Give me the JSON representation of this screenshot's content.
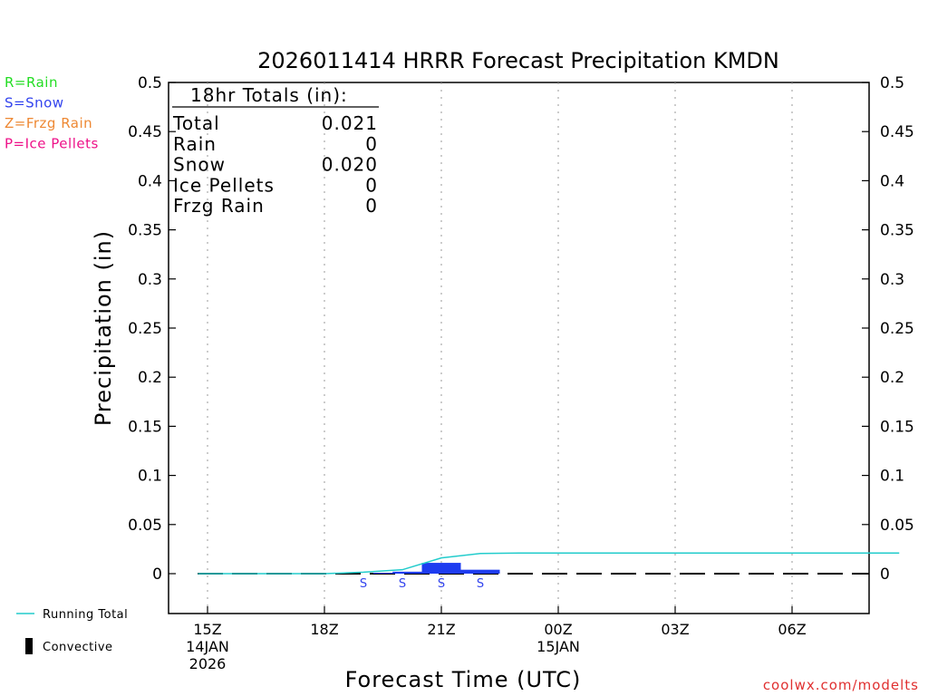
{
  "chart_data": {
    "type": "bar",
    "title": "2026011414 HRRR Forecast Precipitation KMDN",
    "xlabel": "Forecast Time (UTC)",
    "ylabel": "Precipitation (in)",
    "ylim": [
      -0.04,
      0.5
    ],
    "xlim_hours": [
      -0.25,
      17.75
    ],
    "y_ticks": [
      0,
      0.05,
      0.1,
      0.15,
      0.2,
      0.25,
      0.3,
      0.35,
      0.4,
      0.45,
      0.5
    ],
    "y_tick_labels": [
      "0",
      "0.05",
      "0.1",
      "0.15",
      "0.2",
      "0.25",
      "0.3",
      "0.35",
      "0.4",
      "0.45",
      "0.5"
    ],
    "x_ticks": [
      {
        "hour": 0,
        "lines": [
          "15Z",
          "14JAN",
          "2026"
        ]
      },
      {
        "hour": 3,
        "lines": [
          "18Z"
        ]
      },
      {
        "hour": 6,
        "lines": [
          "21Z"
        ]
      },
      {
        "hour": 9,
        "lines": [
          "00Z",
          "15JAN"
        ]
      },
      {
        "hour": 12,
        "lines": [
          "03Z"
        ]
      },
      {
        "hour": 15,
        "lines": [
          "06Z"
        ]
      }
    ],
    "grid": true,
    "hourly_bars": [
      {
        "hour": 4.75,
        "value": 0.0002
      },
      {
        "hour": 5.25,
        "value": 0.002
      },
      {
        "hour": 6.0,
        "value": 0.011
      },
      {
        "hour": 7.0,
        "value": 0.004
      }
    ],
    "ptype_labels": [
      {
        "hour": 4.0,
        "label": "S"
      },
      {
        "hour": 5.0,
        "label": "S"
      },
      {
        "hour": 6.0,
        "label": "S"
      },
      {
        "hour": 7.0,
        "label": "S"
      }
    ],
    "running_total": {
      "name": "Running Total",
      "x": [
        -0.25,
        3,
        4,
        5,
        6,
        7,
        8,
        9,
        10,
        11,
        12,
        13,
        14,
        15,
        16,
        17,
        17.75
      ],
      "y": [
        0,
        0,
        0.0015,
        0.004,
        0.016,
        0.0205,
        0.021,
        0.021,
        0.021,
        0.021,
        0.021,
        0.021,
        0.021,
        0.021,
        0.021,
        0.021,
        0.021
      ]
    },
    "convective": {
      "name": "Convective",
      "values": []
    },
    "totals": {
      "heading": "18hr Totals (in):",
      "rows": [
        {
          "label": "Total",
          "value": "0.021"
        },
        {
          "label": "Rain",
          "value": "0"
        },
        {
          "label": "Snow",
          "value": "0.020"
        },
        {
          "label": "Ice Pellets",
          "value": "0"
        },
        {
          "label": "Frzg Rain",
          "value": "0"
        }
      ]
    },
    "ptype_legend": [
      {
        "text": "R=Rain",
        "color": "#22dd22"
      },
      {
        "text": "S=Snow",
        "color": "#3344ee"
      },
      {
        "text": "Z=Frzg Rain",
        "color": "#ee8833"
      },
      {
        "text": "P=Ice Pellets",
        "color": "#ee1188"
      }
    ],
    "series_legend": [
      {
        "name": "Running Total",
        "color": "#22cccc"
      },
      {
        "name": "Convective",
        "color": "#000000"
      }
    ],
    "colors": {
      "snow_bar": "#1e3cf0",
      "running_total": "#22cccc",
      "credit": "#e03030"
    },
    "credit": "coolwx.com/modelts"
  }
}
